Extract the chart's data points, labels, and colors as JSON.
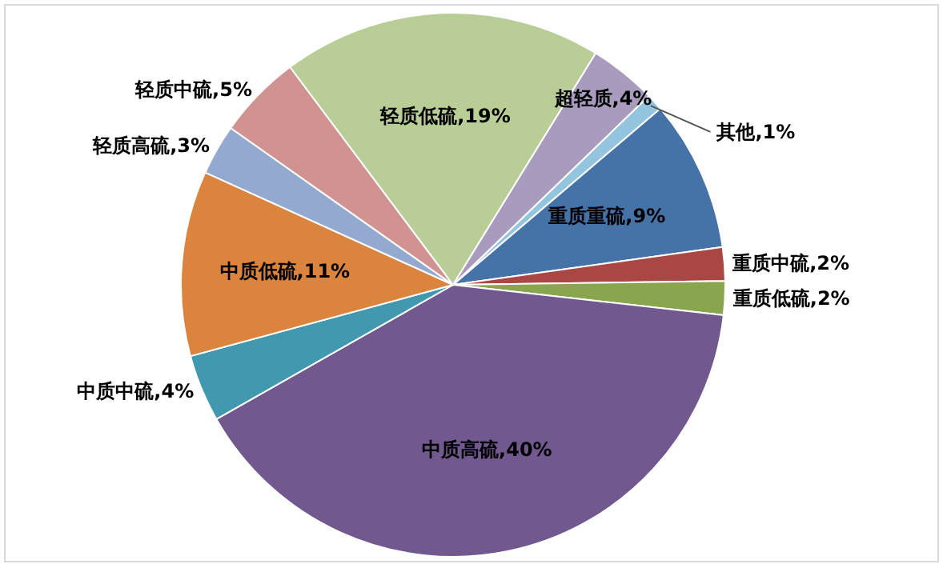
{
  "chart_data": {
    "type": "pie",
    "categories": [
      "其他",
      "重质重硫",
      "重质中硫",
      "重质低硫",
      "中质高硫",
      "中质中硫",
      "中质低硫",
      "轻质高硫",
      "轻质中硫",
      "轻质低硫",
      "超轻质"
    ],
    "values": [
      1,
      9,
      2,
      2,
      40,
      4,
      11,
      3,
      5,
      19,
      4
    ],
    "value_labels": [
      "1%",
      "9%",
      "2%",
      "2%",
      "40%",
      "4%",
      "11%",
      "3%",
      "5%",
      "19%",
      "4%"
    ],
    "colors": [
      "#93c5de",
      "#4572a7",
      "#aa4643",
      "#89a54e",
      "#71588f",
      "#4198af",
      "#db843d",
      "#93a9cf",
      "#d19392",
      "#b9cd96",
      "#a99bbd"
    ]
  }
}
